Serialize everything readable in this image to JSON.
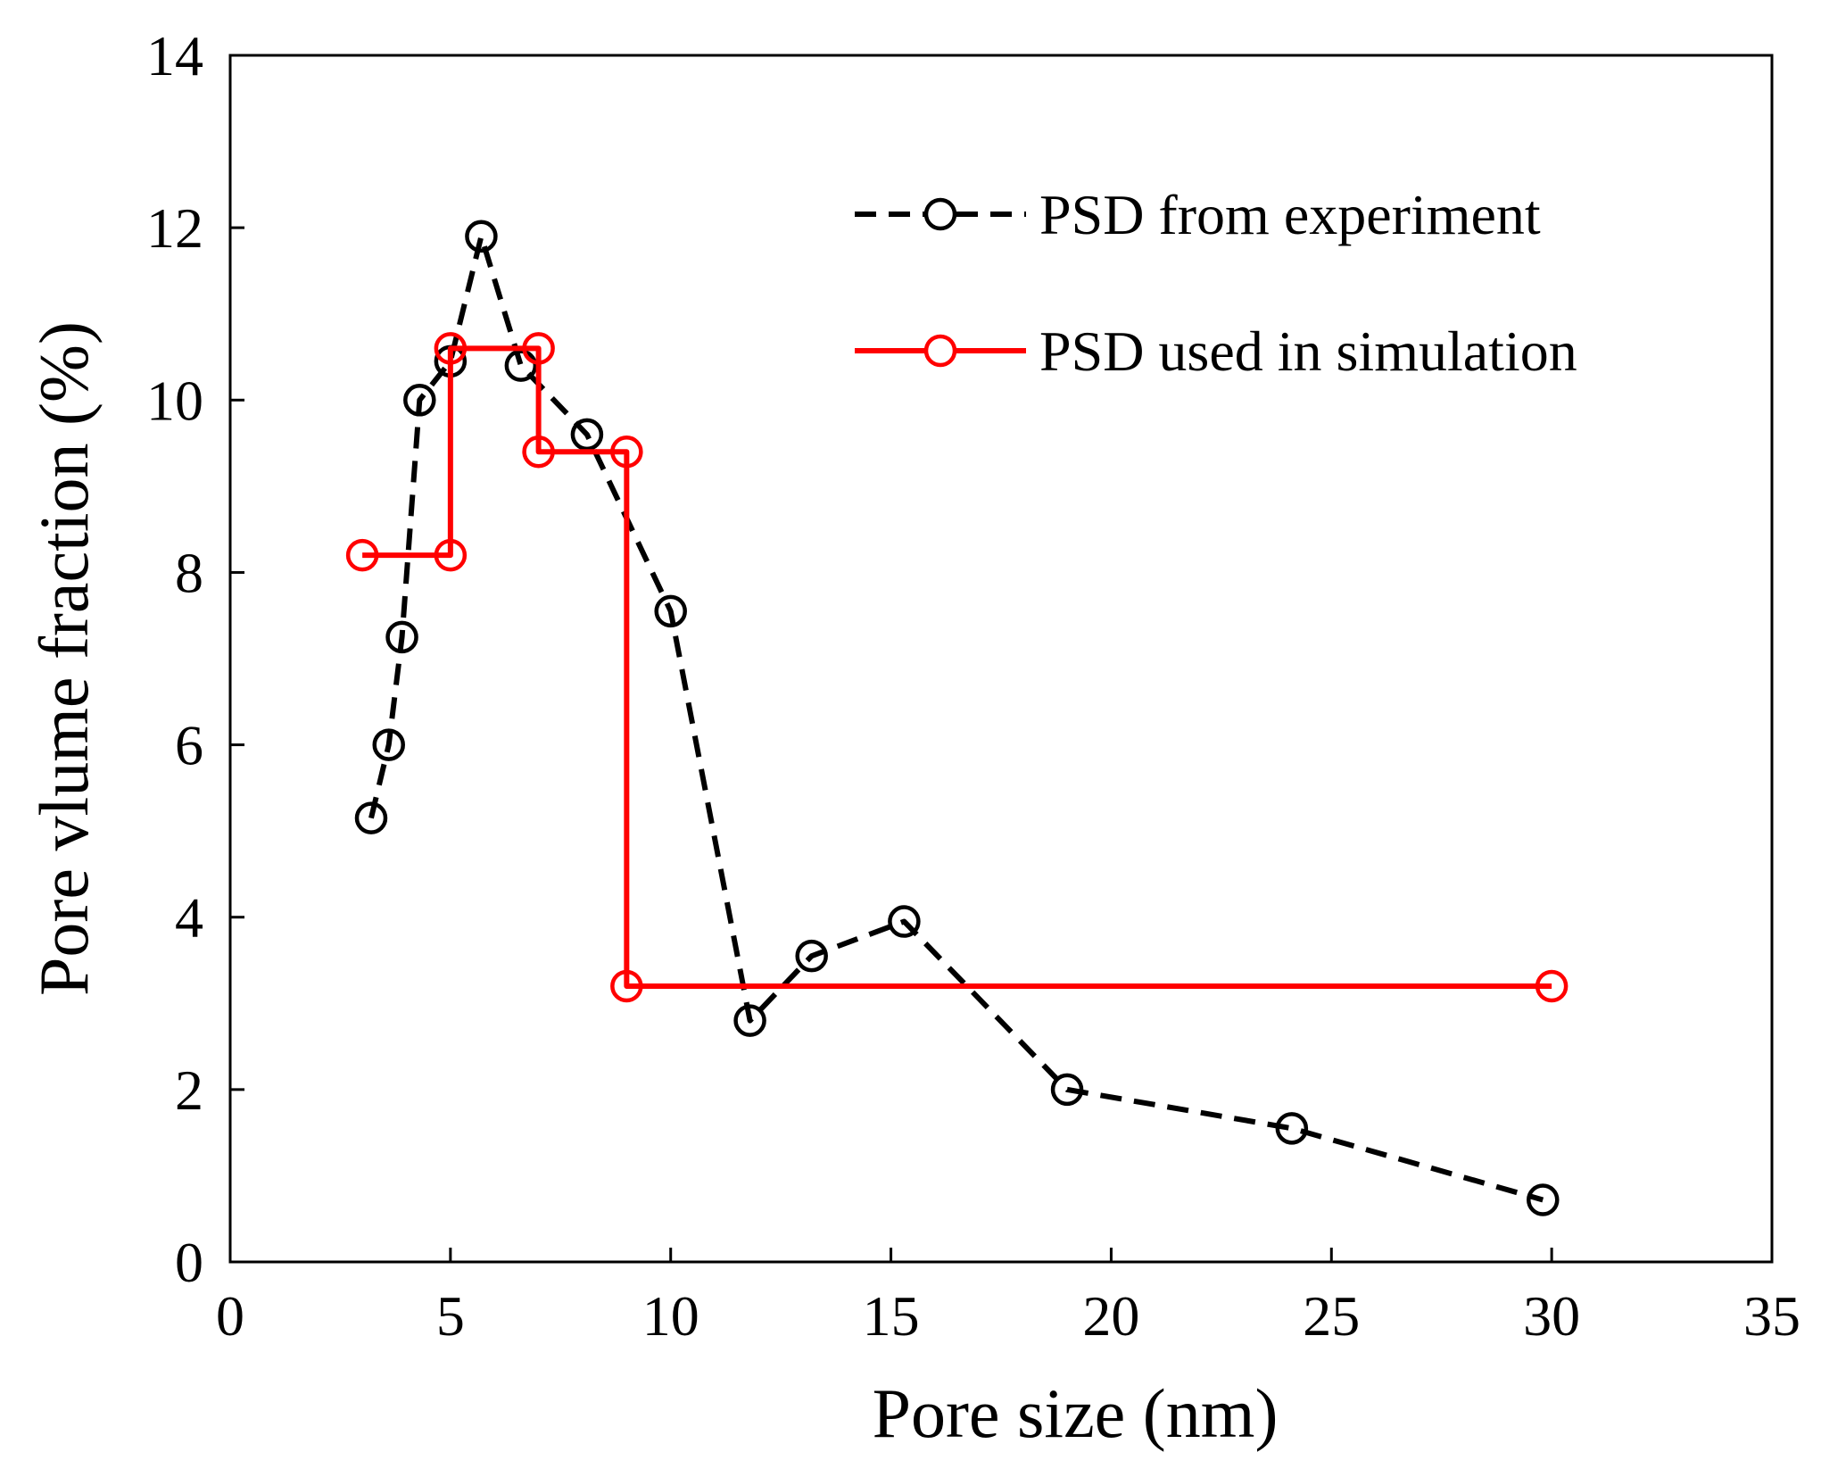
{
  "chart_data": {
    "type": "line",
    "title": "",
    "xlabel": "Pore size (nm)",
    "ylabel": "Pore vlume fraction (%)",
    "xlim": [
      0,
      35
    ],
    "ylim": [
      0,
      14
    ],
    "x_ticks": [
      0,
      5,
      10,
      15,
      20,
      25,
      30,
      35
    ],
    "y_ticks": [
      0,
      2,
      4,
      6,
      8,
      10,
      12,
      14
    ],
    "x_tick_labels": [
      "0",
      "5",
      "10",
      "15",
      "20",
      "25",
      "30",
      "35"
    ],
    "y_tick_labels": [
      "0",
      "2",
      "4",
      "6",
      "8",
      "10",
      "12",
      "14"
    ],
    "grid": false,
    "legend_position": "top-right",
    "series": [
      {
        "name": "PSD from experiment",
        "color": "#000000",
        "line_style": "dashed",
        "marker": "open-circle",
        "x": [
          3.2,
          3.6,
          3.9,
          4.3,
          5.0,
          5.7,
          6.6,
          8.1,
          10.0,
          11.8,
          13.2,
          15.3,
          19.0,
          24.1,
          29.8
        ],
        "y": [
          5.15,
          6.0,
          7.25,
          10.0,
          10.45,
          11.9,
          10.4,
          9.6,
          7.55,
          2.8,
          3.55,
          3.95,
          2.0,
          1.55,
          0.72
        ]
      },
      {
        "name": "PSD used in simulation",
        "color": "#ff0000",
        "line_style": "solid",
        "marker": "open-circle",
        "x": [
          3.0,
          5.0,
          5.0,
          7.0,
          7.0,
          9.0,
          9.0,
          30.0
        ],
        "y": [
          8.2,
          8.2,
          10.6,
          10.6,
          9.4,
          9.4,
          3.2,
          3.2
        ]
      }
    ]
  }
}
